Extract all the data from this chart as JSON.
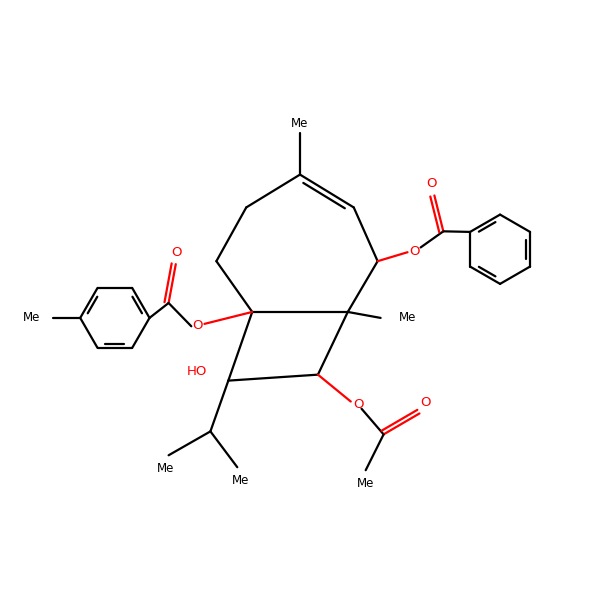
{
  "bg_color": "#ffffff",
  "bond_color": "#000000",
  "oxygen_color": "#ff0000",
  "line_width": 1.6,
  "fig_size": [
    6.0,
    6.0
  ],
  "dpi": 100,
  "xlim": [
    0,
    10
  ],
  "ylim": [
    0,
    10
  ]
}
